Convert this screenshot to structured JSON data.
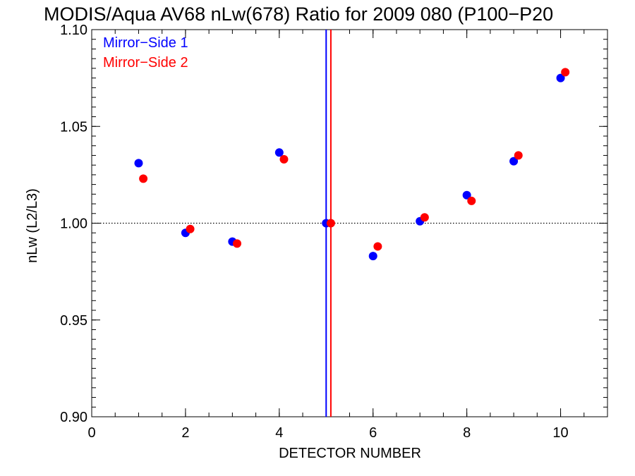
{
  "chart_data": {
    "type": "scatter",
    "title": "MODIS/Aqua AV68 nLw(678) Ratio for 2009 080 (P100−P20",
    "xlabel": "DETECTOR NUMBER",
    "ylabel": "nLw (L2/L3)",
    "xlim": [
      0,
      11
    ],
    "ylim": [
      0.9,
      1.1
    ],
    "x_ticks": [
      0,
      2,
      4,
      6,
      8,
      10
    ],
    "x_tick_labels": [
      "0",
      "2",
      "4",
      "6",
      "8",
      "10"
    ],
    "y_ticks": [
      0.9,
      0.95,
      1.0,
      1.05,
      1.1
    ],
    "y_tick_labels": [
      "0.90",
      "0.95",
      "1.00",
      "1.05",
      "1.10"
    ],
    "reference_line_y": 1.0,
    "vertical_lines": [
      {
        "x": 5.0,
        "color": "#0000ff"
      },
      {
        "x": 5.1,
        "color": "#ff0000"
      }
    ],
    "legend_placement": "top-left",
    "grid": false,
    "series": [
      {
        "name": "Mirror−Side 1",
        "color": "#0000ff",
        "x": [
          1,
          2,
          3,
          4,
          5,
          6,
          7,
          8,
          9,
          10
        ],
        "values": [
          1.031,
          0.995,
          0.9905,
          1.0365,
          1.0,
          0.983,
          1.001,
          1.0145,
          1.032,
          1.075
        ]
      },
      {
        "name": "Mirror−Side 2",
        "color": "#ff0000",
        "x": [
          1.1,
          2.1,
          3.1,
          4.1,
          5.1,
          6.1,
          7.1,
          8.1,
          9.1,
          10.1
        ],
        "values": [
          1.023,
          0.997,
          0.9895,
          1.033,
          1.0,
          0.988,
          1.003,
          1.0115,
          1.035,
          1.078
        ]
      }
    ]
  }
}
